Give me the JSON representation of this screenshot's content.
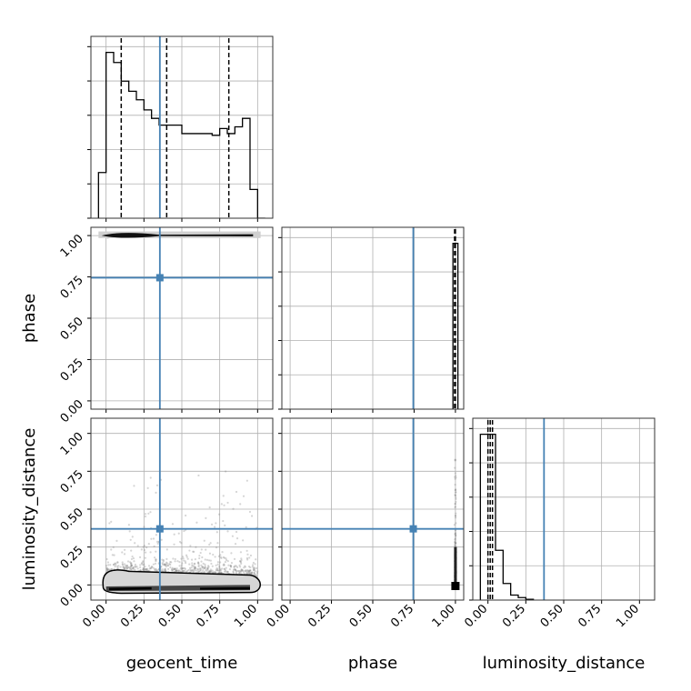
{
  "chart_data": {
    "type": "corner",
    "parameters": [
      "geocent_time",
      "phase",
      "luminosity_distance"
    ],
    "axis_labels": {
      "geocent_time": "geocent_time",
      "phase": "phase",
      "luminosity_distance": "luminosity_distance"
    },
    "tick_labels": [
      "0.00",
      "0.25",
      "0.50",
      "0.75",
      "1.00"
    ],
    "tick_values": [
      0,
      0.25,
      0.5,
      0.75,
      1.0
    ],
    "ranges": {
      "geocent_time": [
        -0.1,
        1.1
      ],
      "phase": [
        -0.05,
        1.05
      ],
      "luminosity_distance": [
        -0.1,
        1.1
      ]
    },
    "grid": true,
    "truth_color": "#4682b4",
    "truths": {
      "geocent_time": 0.355,
      "phase": 0.745,
      "luminosity_distance": 0.37
    },
    "histograms": {
      "geocent_time": {
        "bin_edges": [
          -0.05,
          0.0,
          0.05,
          0.1,
          0.15,
          0.2,
          0.25,
          0.3,
          0.35,
          0.4,
          0.45,
          0.5,
          0.55,
          0.6,
          0.65,
          0.7,
          0.75,
          0.8,
          0.85,
          0.9,
          0.95,
          1.0,
          1.05
        ],
        "counts": [
          0.27,
          0.98,
          0.92,
          0.81,
          0.75,
          0.7,
          0.64,
          0.59,
          0.55,
          0.55,
          0.55,
          0.5,
          0.5,
          0.5,
          0.5,
          0.49,
          0.53,
          0.5,
          0.54,
          0.59,
          0.17,
          0.0
        ],
        "quantiles": [
          0.1,
          0.4,
          0.81
        ]
      },
      "phase": {
        "bin_edges": [
          0.985,
          1.0,
          1.015
        ],
        "counts": [
          1.0,
          1.0
        ],
        "quantiles": [
          0.995,
          0.998,
          1.0
        ]
      },
      "luminosity_distance": {
        "bin_edges": [
          -0.05,
          0.0,
          0.05,
          0.1,
          0.15,
          0.2,
          0.25,
          0.3
        ],
        "counts": [
          1.0,
          1.0,
          0.3,
          0.1,
          0.03,
          0.015,
          0.005
        ],
        "quantiles": [
          0.0,
          0.015,
          0.03
        ]
      }
    },
    "contours": {
      "geocent_time_vs_phase": "posterior concentrated at phase ≈ 1.00 across geocent_time 0.0–1.0",
      "geocent_time_vs_luminosity_distance": "posterior concentrated at luminosity_distance ≈ 0.0–0.1 across geocent_time 0.0–1.0",
      "phase_vs_luminosity_distance": "posterior concentrated at phase ≈ 1.00, luminosity_distance ≈ 0.0–0.2"
    }
  }
}
